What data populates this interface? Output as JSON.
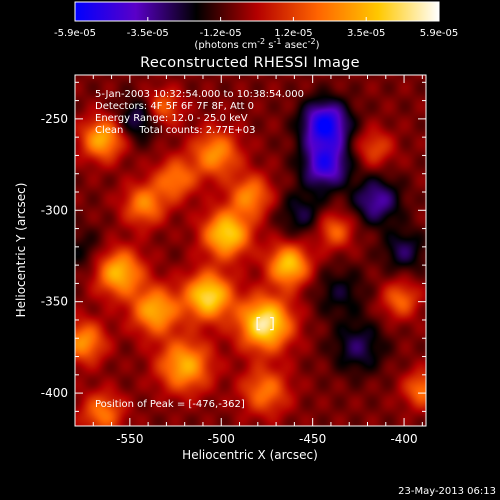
{
  "colorbar": {
    "tick_labels": [
      "-5.9e-05",
      "-3.5e-05",
      "-1.2e-05",
      "1.2e-05",
      "3.5e-05",
      "5.9e-05"
    ],
    "units_html": "(photons cm<tspan dy='-4' font-size='8'>-2</tspan><tspan dy='4'> s</tspan><tspan dy='-4' font-size='8'>-1</tspan><tspan dy='4'> asec</tspan><tspan dy='-4' font-size='8'>-2</tspan><tspan dy='4'>)</tspan>",
    "range": [
      -5.9e-05,
      5.9e-05
    ],
    "colors": [
      "#0000ff",
      "#5a00c8",
      "#000000",
      "#b40000",
      "#ff6400",
      "#ffc800",
      "#ffffff"
    ]
  },
  "title": "Reconstructed RHESSI Image",
  "annotations": [
    "5-Jan-2003 10:32:54.000 to 10:38:54.000",
    "Detectors: 4F 5F 6F 7F 8F, Att 0",
    "Energy Range: 12.0 - 25.0 keV",
    "Clean     Total counts: 2.77E+03"
  ],
  "peak_label": "Position of Peak = [-476,-362]",
  "footer_date": "23-May-2013 06:13",
  "chart_data": {
    "type": "heatmap",
    "title": "Reconstructed RHESSI Image",
    "xlabel": "Heliocentric X (arcsec)",
    "ylabel": "Heliocentric Y (arcsec)",
    "xlim": [
      -580,
      -388
    ],
    "ylim": [
      -418,
      -226
    ],
    "x_ticks": [
      -550,
      -500,
      -450,
      -400
    ],
    "y_ticks": [
      -250,
      -300,
      -350,
      -400
    ],
    "x_tick_labels": [
      "-550",
      "-500",
      "-450",
      "-400"
    ],
    "y_tick_labels": [
      "-250",
      "-300",
      "-350",
      "-400"
    ],
    "peak": [
      -476,
      -362
    ],
    "blobs": [
      {
        "x": -476,
        "y": -362,
        "v": 1.0,
        "s": 10
      },
      {
        "x": -497,
        "y": -313,
        "v": 0.85,
        "s": 9
      },
      {
        "x": -507,
        "y": -347,
        "v": 0.9,
        "s": 9
      },
      {
        "x": -520,
        "y": -385,
        "v": 0.7,
        "s": 10
      },
      {
        "x": -463,
        "y": -330,
        "v": 0.8,
        "s": 8
      },
      {
        "x": -536,
        "y": -355,
        "v": 0.7,
        "s": 9
      },
      {
        "x": -556,
        "y": -334,
        "v": 0.75,
        "s": 9
      },
      {
        "x": -565,
        "y": -261,
        "v": 0.7,
        "s": 8
      },
      {
        "x": -575,
        "y": -372,
        "v": 0.6,
        "s": 8
      },
      {
        "x": -542,
        "y": -297,
        "v": 0.55,
        "s": 8
      },
      {
        "x": -503,
        "y": -269,
        "v": 0.6,
        "s": 9
      },
      {
        "x": -525,
        "y": -283,
        "v": 0.5,
        "s": 8
      },
      {
        "x": -484,
        "y": -292,
        "v": 0.55,
        "s": 8
      },
      {
        "x": -476,
        "y": -399,
        "v": 0.5,
        "s": 9
      },
      {
        "x": -438,
        "y": -311,
        "v": 0.45,
        "s": 7
      },
      {
        "x": -402,
        "y": -349,
        "v": 0.45,
        "s": 7
      },
      {
        "x": -390,
        "y": -398,
        "v": 0.5,
        "s": 7
      },
      {
        "x": -416,
        "y": -266,
        "v": 0.35,
        "s": 7
      },
      {
        "x": -532,
        "y": -244,
        "v": 0.45,
        "s": 7
      },
      {
        "x": -565,
        "y": -411,
        "v": 0.5,
        "s": 8
      },
      {
        "x": -443,
        "y": -253,
        "v": -0.85,
        "s": 9
      },
      {
        "x": -443,
        "y": -275,
        "v": -0.7,
        "s": 9
      },
      {
        "x": -415,
        "y": -295,
        "v": -0.5,
        "s": 9
      },
      {
        "x": -545,
        "y": -250,
        "v": -0.4,
        "s": 8
      },
      {
        "x": -425,
        "y": -375,
        "v": -0.35,
        "s": 10
      },
      {
        "x": -575,
        "y": -323,
        "v": -0.2,
        "s": 9
      },
      {
        "x": -456,
        "y": -302,
        "v": -0.3,
        "s": 9
      },
      {
        "x": -400,
        "y": -322,
        "v": -0.35,
        "s": 8
      },
      {
        "x": -435,
        "y": -345,
        "v": -0.25,
        "s": 10
      }
    ]
  }
}
